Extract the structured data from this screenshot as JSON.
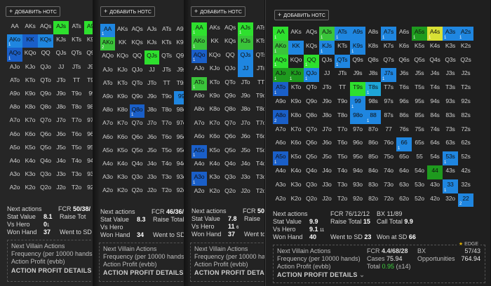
{
  "add_notes_label": "ДОБАВИТЬ НОТС",
  "hand_matrix": [
    [
      "AA",
      "AKs",
      "AQs",
      "AJs",
      "ATs",
      "A9s",
      "A8s",
      "A7s",
      "A6s",
      "A5s",
      "A4s",
      "A3s",
      "A2s"
    ],
    [
      "AKo",
      "KK",
      "KQs",
      "KJs",
      "KTs",
      "K9s",
      "K8s",
      "K7s",
      "K6s",
      "K5s",
      "K4s",
      "K3s",
      "K2s"
    ],
    [
      "AQo",
      "KQo",
      "QQ",
      "QJs",
      "QTs",
      "Q9s",
      "Q8s",
      "Q7s",
      "Q6s",
      "Q5s",
      "Q4s",
      "Q3s",
      "Q2s"
    ],
    [
      "AJo",
      "KJo",
      "QJo",
      "JJ",
      "JTs",
      "J9s",
      "J8s",
      "J7s",
      "J6s",
      "J5s",
      "J4s",
      "J3s",
      "J2s"
    ],
    [
      "ATo",
      "KTo",
      "QTo",
      "JTo",
      "TT",
      "T9s",
      "T8s",
      "T7s",
      "T6s",
      "T5s",
      "T4s",
      "T3s",
      "T2s"
    ],
    [
      "A9o",
      "K9o",
      "Q9o",
      "J9o",
      "T9o",
      "99",
      "98s",
      "97s",
      "96s",
      "95s",
      "94s",
      "93s",
      "92s"
    ],
    [
      "A8o",
      "K8o",
      "Q8o",
      "J8o",
      "T8o",
      "98o",
      "88",
      "87s",
      "86s",
      "85s",
      "84s",
      "83s",
      "82s"
    ],
    [
      "A7o",
      "K7o",
      "Q7o",
      "J7o",
      "T7o",
      "97o",
      "87o",
      "77",
      "76s",
      "75s",
      "74s",
      "73s",
      "72s"
    ],
    [
      "A6o",
      "K6o",
      "Q6o",
      "J6o",
      "T6o",
      "96o",
      "86o",
      "76o",
      "66",
      "65s",
      "64s",
      "63s",
      "62s"
    ],
    [
      "A5o",
      "K5o",
      "Q5o",
      "J5o",
      "T5o",
      "95o",
      "85o",
      "75o",
      "65o",
      "55",
      "54s",
      "53s",
      "52s"
    ],
    [
      "A4o",
      "K4o",
      "Q4o",
      "J4o",
      "T4o",
      "94o",
      "84o",
      "74o",
      "64o",
      "54o",
      "44",
      "43s",
      "42s"
    ],
    [
      "A3o",
      "K3o",
      "Q3o",
      "J3o",
      "T3o",
      "93o",
      "83o",
      "73o",
      "63o",
      "53o",
      "43o",
      "33",
      "32s"
    ],
    [
      "A2o",
      "K2o",
      "Q2o",
      "J2o",
      "T2o",
      "92o",
      "82o",
      "72o",
      "62o",
      "52o",
      "42o",
      "32o",
      "22"
    ]
  ],
  "panels": [
    {
      "highlights": [
        {
          "h": "AJs",
          "c": "c-g",
          "n": ""
        },
        {
          "h": "A9s",
          "c": "c-g",
          "n": ""
        },
        {
          "h": "AKo",
          "c": "c-b",
          "n": "1"
        },
        {
          "h": "KK",
          "c": "c-db",
          "n": ""
        },
        {
          "h": "KQs",
          "c": "c-b",
          "n": ""
        },
        {
          "h": "AQo",
          "c": "c-db",
          "n": "1"
        }
      ],
      "stats": {
        "next_actions": "Next actions",
        "fcr_label": "FCR",
        "fcr": "50/38/",
        "stat_value_label": "Stat Value",
        "stat_value": "8.1",
        "raise_total_label": "Raise Tot",
        "vs_hero_label": "Vs Hero",
        "vs_hero": "0",
        "vs_hero_sub": "1",
        "won_hand_label": "Won Hand",
        "won_hand": "37",
        "wtsd_label": "Went to SD"
      },
      "villain": {
        "title": "Next Villain Actions",
        "frequency": "Frequency (per 10000 hands)",
        "profit": "Action Profit (evbb)",
        "details": "ACTION PROFIT DETAILS"
      }
    },
    {
      "highlights": [
        {
          "h": "AA",
          "c": "c-b",
          "n": "1"
        },
        {
          "h": "AKo",
          "c": "c-lg",
          "n": "2"
        },
        {
          "h": "QJs",
          "c": "c-g",
          "n": ""
        },
        {
          "h": "99",
          "c": "c-b",
          "n": ""
        },
        {
          "h": "Q8o",
          "c": "c-db",
          "n": "1"
        }
      ],
      "stats": {
        "next_actions": "Next actions",
        "fcr_label": "FCR",
        "fcr": "46/36/",
        "stat_value_label": "Stat Value",
        "stat_value": "8.3",
        "raise_total_label": "Raise Total",
        "vs_hero_label": "Vs Hero",
        "vs_hero": "",
        "won_hand_label": "Won Hand",
        "won_hand": "34",
        "wtsd_label": "Went to SD"
      },
      "villain": {
        "title": "Next Villain Actions",
        "frequency": "Frequency (per 10000 hands",
        "profit": "Action Profit (evbb)",
        "details": "ACTION PROFIT DETAILS"
      }
    },
    {
      "highlights": [
        {
          "h": "AA",
          "c": "c-g",
          "n": "1"
        },
        {
          "h": "AJs",
          "c": "c-g",
          "n": "1"
        },
        {
          "h": "AKo",
          "c": "c-lg",
          "n": "1"
        },
        {
          "h": "KJs",
          "c": "c-lg",
          "n": ""
        },
        {
          "h": "AQo",
          "c": "c-db",
          "n": "1"
        },
        {
          "h": "QJs",
          "c": "c-b",
          "n": ""
        },
        {
          "h": "JJ",
          "c": "c-b",
          "n": ""
        },
        {
          "h": "ATo",
          "c": "c-lg",
          "n": "1"
        },
        {
          "h": "A5o",
          "c": "c-db",
          "n": "1"
        },
        {
          "h": "A3o",
          "c": "c-db",
          "n": "1"
        }
      ],
      "stats": {
        "next_actions": "Next actions",
        "fcr_label": "FCR",
        "fcr": "50/",
        "stat_value_label": "Stat Value",
        "stat_value": "7.8",
        "raise_total_label": "Raise",
        "vs_hero_label": "Vs Hero",
        "vs_hero": "11",
        "vs_hero_sub": "6",
        "won_hand_label": "Won Hand",
        "won_hand": "37",
        "wtsd_label": "Went to SD"
      },
      "villain": {
        "title": "Next Villain Actions",
        "frequency": "Frequency (per 10000 hands",
        "profit": "Action Profit (evbb)",
        "details": "ACTION PROFIT DETAILS"
      }
    },
    {
      "highlights": [
        {
          "h": "AA",
          "c": "c-g",
          "n": "1"
        },
        {
          "h": "AJs",
          "c": "c-lg",
          "n": "1"
        },
        {
          "h": "ATs",
          "c": "c-b",
          "n": "1"
        },
        {
          "h": "A9s",
          "c": "c-b",
          "n": ""
        },
        {
          "h": "A7s",
          "c": "c-b",
          "n": "1"
        },
        {
          "h": "A5s",
          "c": "c-dg",
          "n": "1"
        },
        {
          "h": "A4s",
          "c": "c-y",
          "n": "1"
        },
        {
          "h": "A3s",
          "c": "c-b",
          "n": "1"
        },
        {
          "h": "A2s",
          "c": "c-b",
          "n": "1"
        },
        {
          "h": "AKo",
          "c": "c-lg",
          "n": "1"
        },
        {
          "h": "KK",
          "c": "c-b",
          "n": ""
        },
        {
          "h": "KJs",
          "c": "c-b",
          "n": "1"
        },
        {
          "h": "K9s",
          "c": "c-b",
          "n": "1"
        },
        {
          "h": "AQo",
          "c": "c-g",
          "n": "1"
        },
        {
          "h": "QQ",
          "c": "c-g",
          "n": "1"
        },
        {
          "h": "QTs",
          "c": "c-b",
          "n": "1"
        },
        {
          "h": "AJo",
          "c": "c-dg",
          "n": "1"
        },
        {
          "h": "KJo",
          "c": "c-dg",
          "n": "1"
        },
        {
          "h": "QJo",
          "c": "c-b",
          "n": "1"
        },
        {
          "h": "J7s",
          "c": "c-b",
          "n": "1"
        },
        {
          "h": "ATo",
          "c": "c-db",
          "n": "1"
        },
        {
          "h": "T9s",
          "c": "c-g",
          "n": ""
        },
        {
          "h": "T8s",
          "c": "c-c",
          "n": "1"
        },
        {
          "h": "99",
          "c": "c-b",
          "n": "1"
        },
        {
          "h": "A8o",
          "c": "c-db",
          "n": "2"
        },
        {
          "h": "98o",
          "c": "c-b",
          "n": ""
        },
        {
          "h": "88",
          "c": "c-b",
          "n": "1"
        },
        {
          "h": "66",
          "c": "c-b",
          "n": "1"
        },
        {
          "h": "A5o",
          "c": "c-db",
          "n": "1"
        },
        {
          "h": "53s",
          "c": "c-b",
          "n": "1"
        },
        {
          "h": "44",
          "c": "c-dg",
          "n": ""
        },
        {
          "h": "33",
          "c": "c-b",
          "n": "1"
        },
        {
          "h": "22",
          "c": "c-b",
          "n": "2"
        }
      ],
      "stats": {
        "next_actions": "Next actions",
        "fcr_label": "FCR",
        "fcr": "76/12/12",
        "bx_label": "BX",
        "bx": "11/89",
        "stat_value_label": "Stat Value",
        "stat_value": "9.9",
        "raise_total_label": "Raise Total",
        "raise_total": "15",
        "call_total_label": "Call Total",
        "call_total": "9.9",
        "vs_hero_label": "Vs Hero",
        "vs_hero": "9.1",
        "vs_hero_sub": "11",
        "won_hand_label": "Won Hand",
        "won_hand": "40",
        "wtsd_label": "Went to SD",
        "wtsd": "23",
        "won_sd_label": "Won at SD",
        "won_sd": "66"
      },
      "villain": {
        "title": "Next Villain Actions",
        "frequency": "Frequency (per 10000 hands)",
        "profit": "Action Profit (evbb)",
        "details": "ACTION PROFIT DETAILS",
        "fcr_label": "FCR",
        "fcr": "4.4/68/28",
        "bx_label": "BX",
        "bx": "57/43",
        "cases_label": "Cases",
        "cases": "75.94",
        "opps_label": "Opportunities",
        "opps": "764.94",
        "total_label": "Total",
        "total": "0.95",
        "total_err": "(±14)",
        "edge_label": "EDGE"
      }
    }
  ]
}
